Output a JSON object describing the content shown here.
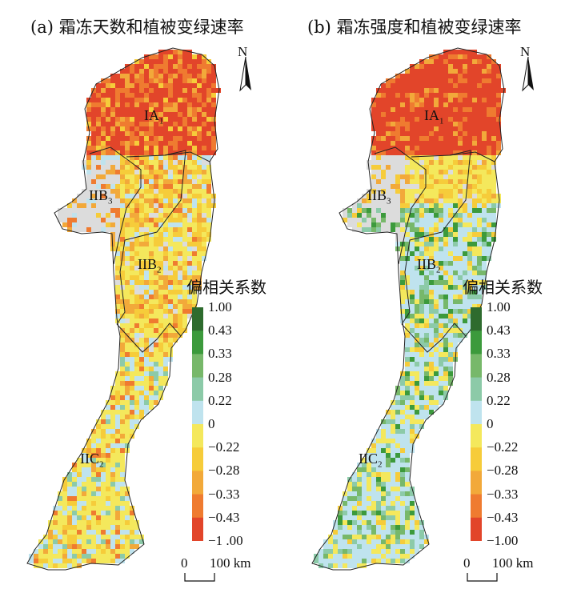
{
  "panels": [
    {
      "title": "(a) 霜冻天数和植被变绿速率",
      "legend_title": "偏相关系数",
      "legend_labels": [
        "1.00",
        "0.43",
        "0.33",
        "0.28",
        "0.22",
        "0",
        "−0.22",
        "−0.28",
        "−0.33",
        "−0.43",
        "−1 .00"
      ],
      "north_label": "N",
      "scale_labels": [
        "0",
        "100 km"
      ],
      "regions": [
        {
          "name": "IA",
          "sub": "1"
        },
        {
          "name": "IIB",
          "sub": "3"
        },
        {
          "name": "IIB",
          "sub": "2"
        },
        {
          "name": "IIC",
          "sub": "2"
        }
      ]
    },
    {
      "title": "(b) 霜冻强度和植被变绿速率",
      "legend_title": "偏相关系数",
      "legend_labels": [
        "1.00",
        "0.43",
        "0.33",
        "0.28",
        "0.22",
        "0",
        "−0.22",
        "−0.28",
        "−0.33",
        "−0.43",
        "−1.00"
      ],
      "north_label": "N",
      "scale_labels": [
        "0",
        "100 km"
      ],
      "regions": [
        {
          "name": "IA",
          "sub": "1"
        },
        {
          "name": "IIB",
          "sub": "3"
        },
        {
          "name": "IIB",
          "sub": "2"
        },
        {
          "name": "IIC",
          "sub": "2"
        }
      ]
    }
  ],
  "colors": {
    "legend": [
      "#2e6b2e",
      "#3c9a3c",
      "#77b86a",
      "#8ccaa8",
      "#bfe3ee",
      "#f4e85c",
      "#f6cc3a",
      "#f2a93a",
      "#ef7b30",
      "#e2452a"
    ],
    "no_data": "#dcdcdc"
  }
}
